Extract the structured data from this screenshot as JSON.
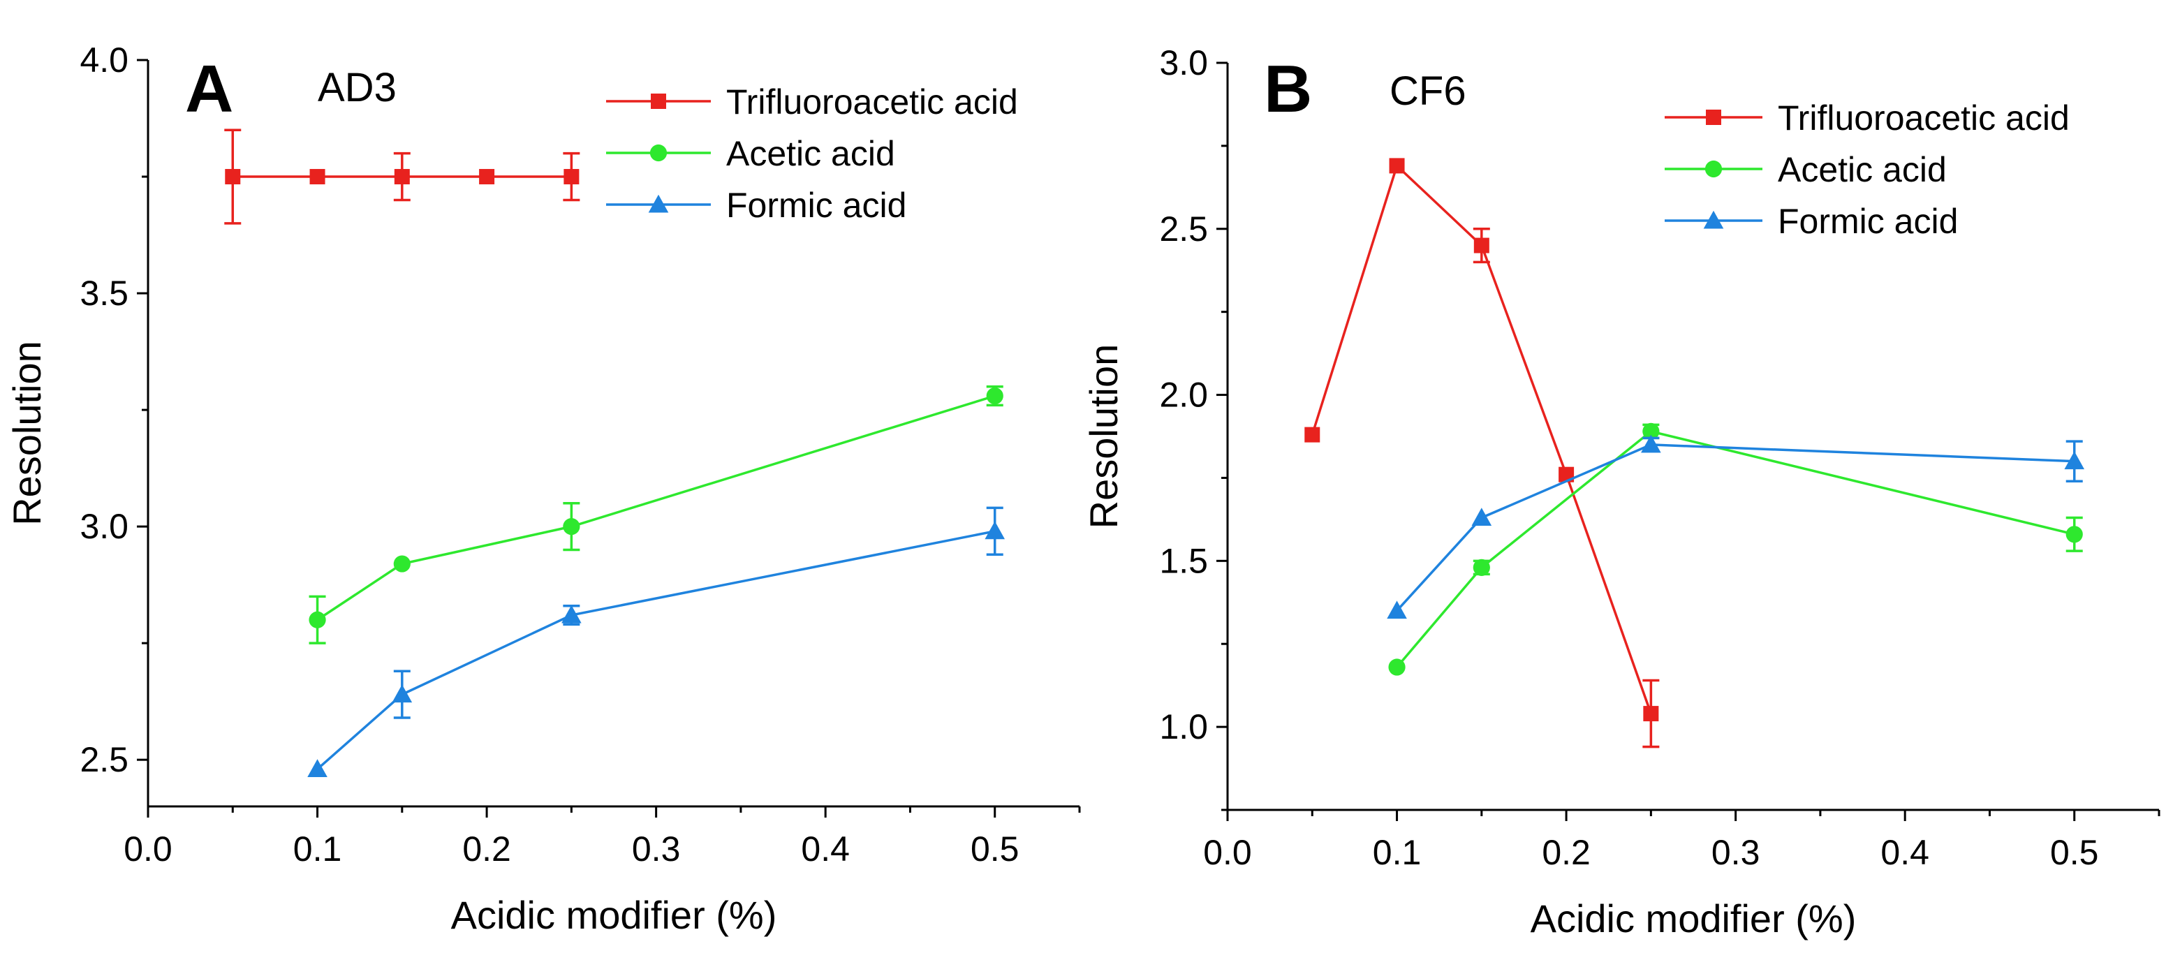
{
  "chart_data": [
    {
      "type": "line",
      "panel_label": "A",
      "title": "AD3",
      "xlabel": "Acidic modifier (%)",
      "ylabel": "Resolution",
      "xlim": [
        0.0,
        0.55
      ],
      "ylim": [
        2.4,
        4.0
      ],
      "xticks": [
        0.0,
        0.1,
        0.2,
        0.3,
        0.4,
        0.5
      ],
      "xtick_labels": [
        "0.0",
        "0.1",
        "0.2",
        "0.3",
        "0.4",
        "0.5"
      ],
      "yticks": [
        2.5,
        3.0,
        3.5,
        4.0
      ],
      "ytick_labels": [
        "2.5",
        "3.0",
        "3.5",
        "4.0"
      ],
      "legend_position": "top-right",
      "series": [
        {
          "name": "Trifluoroacetic acid",
          "color": "#e8221e",
          "marker": "square",
          "x": [
            0.05,
            0.1,
            0.15,
            0.2,
            0.25
          ],
          "y": [
            3.75,
            3.75,
            3.75,
            3.75,
            3.75
          ],
          "err": [
            0.1,
            0.0,
            0.05,
            0.0,
            0.05
          ]
        },
        {
          "name": "Acetic acid",
          "color": "#2ee82e",
          "marker": "circle",
          "x": [
            0.1,
            0.15,
            0.25,
            0.5
          ],
          "y": [
            2.8,
            2.92,
            3.0,
            3.28
          ],
          "err": [
            0.05,
            0.0,
            0.05,
            0.02
          ]
        },
        {
          "name": "Formic acid",
          "color": "#1f83de",
          "marker": "triangle",
          "x": [
            0.1,
            0.15,
            0.25,
            0.5
          ],
          "y": [
            2.48,
            2.64,
            2.81,
            2.99
          ],
          "err": [
            0.0,
            0.05,
            0.02,
            0.05
          ]
        }
      ]
    },
    {
      "type": "line",
      "panel_label": "B",
      "title": "CF6",
      "xlabel": "Acidic modifier (%)",
      "ylabel": "Resolution",
      "xlim": [
        0.0,
        0.55
      ],
      "ylim": [
        0.75,
        3.0
      ],
      "xticks": [
        0.0,
        0.1,
        0.2,
        0.3,
        0.4,
        0.5
      ],
      "xtick_labels": [
        "0.0",
        "0.1",
        "0.2",
        "0.3",
        "0.4",
        "0.5"
      ],
      "yticks": [
        1.0,
        1.5,
        2.0,
        2.5,
        3.0
      ],
      "ytick_labels": [
        "1.0",
        "1.5",
        "2.0",
        "2.5",
        "3.0"
      ],
      "legend_position": "top-right",
      "series": [
        {
          "name": "Trifluoroacetic acid",
          "color": "#e8221e",
          "marker": "square",
          "x": [
            0.05,
            0.1,
            0.15,
            0.2,
            0.25
          ],
          "y": [
            1.88,
            2.69,
            2.45,
            1.76,
            1.04
          ],
          "err": [
            0.0,
            0.0,
            0.05,
            0.0,
            0.1
          ]
        },
        {
          "name": "Acetic acid",
          "color": "#2ee82e",
          "marker": "circle",
          "x": [
            0.1,
            0.15,
            0.25,
            0.5
          ],
          "y": [
            1.18,
            1.48,
            1.89,
            1.58
          ],
          "err": [
            0.0,
            0.02,
            0.02,
            0.05
          ]
        },
        {
          "name": "Formic acid",
          "color": "#1f83de",
          "marker": "triangle",
          "x": [
            0.1,
            0.15,
            0.25,
            0.5
          ],
          "y": [
            1.35,
            1.63,
            1.85,
            1.8
          ],
          "err": [
            0.0,
            0.0,
            0.02,
            0.06
          ]
        }
      ]
    }
  ]
}
